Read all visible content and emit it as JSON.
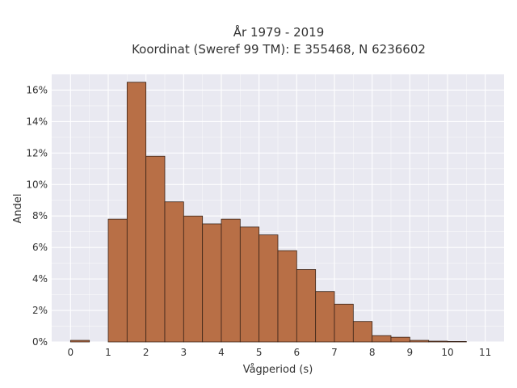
{
  "chart_data": {
    "type": "bar",
    "title_lines": [
      "År 1979 - 2019",
      "Koordinat (Sweref 99 TM): E 355468, N 6236602"
    ],
    "xlabel": "Vågperiod (s)",
    "ylabel": "Andel",
    "xlim": [
      -0.5,
      11.5
    ],
    "ylim": [
      0,
      0.17
    ],
    "x_ticks": [
      0,
      1,
      2,
      3,
      4,
      5,
      6,
      7,
      8,
      9,
      10,
      11
    ],
    "x_tick_labels": [
      "0",
      "1",
      "2",
      "3",
      "4",
      "5",
      "6",
      "7",
      "8",
      "9",
      "10",
      "11"
    ],
    "y_ticks": [
      0,
      0.02,
      0.04,
      0.06,
      0.08,
      0.1,
      0.12,
      0.14,
      0.16
    ],
    "y_tick_labels": [
      "0%",
      "2%",
      "4%",
      "6%",
      "8%",
      "10%",
      "12%",
      "14%",
      "16%"
    ],
    "bin_width": 0.5,
    "bins": [
      {
        "start": 0.0,
        "value": 0.001
      },
      {
        "start": 0.5,
        "value": 0.0
      },
      {
        "start": 1.0,
        "value": 0.078
      },
      {
        "start": 1.5,
        "value": 0.165
      },
      {
        "start": 2.0,
        "value": 0.118
      },
      {
        "start": 2.5,
        "value": 0.089
      },
      {
        "start": 3.0,
        "value": 0.08
      },
      {
        "start": 3.5,
        "value": 0.075
      },
      {
        "start": 4.0,
        "value": 0.078
      },
      {
        "start": 4.5,
        "value": 0.073
      },
      {
        "start": 5.0,
        "value": 0.068
      },
      {
        "start": 5.5,
        "value": 0.058
      },
      {
        "start": 6.0,
        "value": 0.046
      },
      {
        "start": 6.5,
        "value": 0.032
      },
      {
        "start": 7.0,
        "value": 0.024
      },
      {
        "start": 7.5,
        "value": 0.013
      },
      {
        "start": 8.0,
        "value": 0.004
      },
      {
        "start": 8.5,
        "value": 0.003
      },
      {
        "start": 9.0,
        "value": 0.001
      },
      {
        "start": 9.5,
        "value": 0.0005
      },
      {
        "start": 10.0,
        "value": 0.0003
      }
    ],
    "grid": true,
    "colors": {
      "bar_fill": "#b86f46",
      "bar_edge": "#3a2418",
      "plot_bg": "#e9e9f1",
      "grid": "#ffffff"
    }
  }
}
